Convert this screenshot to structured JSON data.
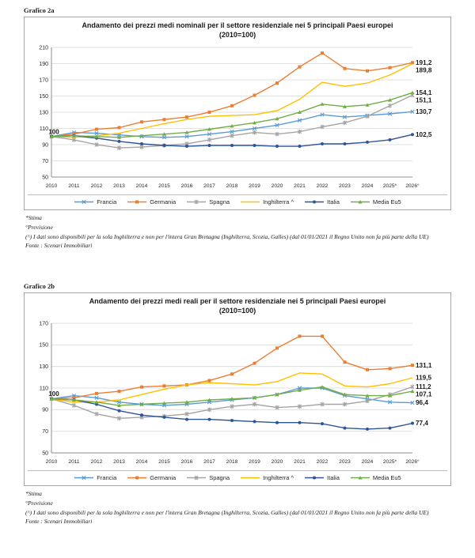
{
  "page": {
    "grafico_2a_label": "Grafico 2a",
    "grafico_2b_label": "Grafico 2b",
    "footnotes": {
      "stima": "*Stima",
      "previsione": "°Previsione",
      "nota": "(^) I dati sono disponibili per la sola Inghilterra e non per l'intera Gran Bretagna (Inghilterra, Scozia, Galles)  (dal 01/01/2021 il Regno Unito non fa più parte della UE)",
      "fonte": "Fonte : Scenari Immobiliari"
    }
  },
  "chart_data": [
    {
      "type": "line",
      "title_line1": "Andamento dei prezzi medi nominali per il settore residenziale nei 5 principali Paesi europei",
      "title_line2": "(2010=100)",
      "xlabel": "",
      "ylabel": "",
      "x": [
        "2010",
        "2011",
        "2012",
        "2013",
        "2014",
        "2015",
        "2016",
        "2017",
        "2018",
        "2019",
        "2020",
        "2021",
        "2022",
        "2023",
        "2024",
        "2025*",
        "2026°"
      ],
      "ylim": [
        50,
        210
      ],
      "ytick_step": 20,
      "grid": true,
      "legend_position": "bottom",
      "start_label": "100",
      "series": [
        {
          "name": "Francia",
          "color": "#5B9BD5",
          "marker": "x",
          "end_label": "130,7",
          "values": [
            100,
            105,
            104,
            102,
            100,
            99,
            100,
            103,
            106,
            110,
            114,
            120,
            127,
            124,
            126,
            128,
            130.7
          ]
        },
        {
          "name": "Germania",
          "color": "#ED7D31",
          "marker": "square",
          "end_label": "191,2",
          "values": [
            100,
            103,
            109,
            111,
            118,
            121,
            124,
            130,
            138,
            151,
            166,
            186,
            203,
            184,
            181,
            185,
            191.2
          ]
        },
        {
          "name": "Spagna",
          "color": "#A5A5A5",
          "marker": "asterisk",
          "end_label": "151,1",
          "values": [
            100,
            96,
            90,
            86,
            87,
            89,
            91,
            96,
            101,
            105,
            103,
            106,
            112,
            117,
            125,
            138,
            151.1
          ]
        },
        {
          "name": "Inghilterra ^",
          "color": "#FFC000",
          "marker": "none",
          "end_label": "189,8",
          "values": [
            100,
            99,
            101,
            104,
            110,
            116,
            121,
            125,
            126,
            127,
            132,
            146,
            167,
            162,
            166,
            176,
            189.8
          ]
        },
        {
          "name": "Italia",
          "color": "#2F5597",
          "marker": "circle",
          "end_label": "102,5",
          "values": [
            100,
            101,
            98,
            94,
            91,
            89,
            88,
            89,
            89,
            89,
            88,
            88,
            91,
            91,
            93,
            96,
            102.5
          ]
        },
        {
          "name": "Media Eu5",
          "color": "#70AD47",
          "marker": "triangle",
          "end_label": "154,1",
          "values": [
            100,
            101,
            100,
            99,
            101,
            103,
            105,
            109,
            113,
            117,
            122,
            130,
            140,
            137,
            139,
            145,
            154.1
          ]
        }
      ]
    },
    {
      "type": "line",
      "title_line1": "Andamento dei prezzi medi reali per il settore residenziale nei 5 principali Paesi europei",
      "title_line2": "(2010=100)",
      "xlabel": "",
      "ylabel": "",
      "x": [
        "2010",
        "2011",
        "2012",
        "2013",
        "2014",
        "2015",
        "2016",
        "2017",
        "2018",
        "2019",
        "2020",
        "2021",
        "2022",
        "2023",
        "2024",
        "2025*",
        "2026°"
      ],
      "ylim": [
        50,
        170
      ],
      "ytick_step": 20,
      "grid": true,
      "legend_position": "bottom",
      "start_label": "100",
      "series": [
        {
          "name": "Francia",
          "color": "#5B9BD5",
          "marker": "x",
          "end_label": "96,4",
          "values": [
            100,
            103,
            101,
            97,
            95,
            94,
            95,
            97,
            99,
            101,
            104,
            110,
            110,
            103,
            100,
            97,
            96.4
          ]
        },
        {
          "name": "Germania",
          "color": "#ED7D31",
          "marker": "square",
          "end_label": "131,1",
          "values": [
            100,
            101,
            105,
            107,
            111,
            112,
            113,
            117,
            123,
            133,
            147,
            158,
            158,
            134,
            127,
            128,
            131.1
          ]
        },
        {
          "name": "Spagna",
          "color": "#A5A5A5",
          "marker": "asterisk",
          "end_label": "111,2",
          "values": [
            100,
            94,
            86,
            82,
            83,
            84,
            86,
            90,
            93,
            95,
            92,
            93,
            95,
            95,
            98,
            104,
            111.2
          ]
        },
        {
          "name": "Inghilterra ^",
          "color": "#FFC000",
          "marker": "none",
          "end_label": "119,5",
          "values": [
            100,
            97,
            97,
            99,
            104,
            109,
            113,
            115,
            114,
            113,
            116,
            124,
            123,
            112,
            111,
            114,
            119.5
          ]
        },
        {
          "name": "Italia",
          "color": "#2F5597",
          "marker": "circle",
          "end_label": "77,4",
          "values": [
            100,
            99,
            95,
            89,
            85,
            83,
            81,
            81,
            80,
            79,
            78,
            78,
            77,
            73,
            72,
            73,
            77.4
          ]
        },
        {
          "name": "Media Eu5",
          "color": "#70AD47",
          "marker": "triangle",
          "end_label": "107,1",
          "values": [
            100,
            99,
            97,
            94,
            95,
            96,
            97,
            99,
            100,
            101,
            104,
            108,
            111,
            104,
            103,
            103,
            107.1
          ]
        }
      ]
    }
  ]
}
